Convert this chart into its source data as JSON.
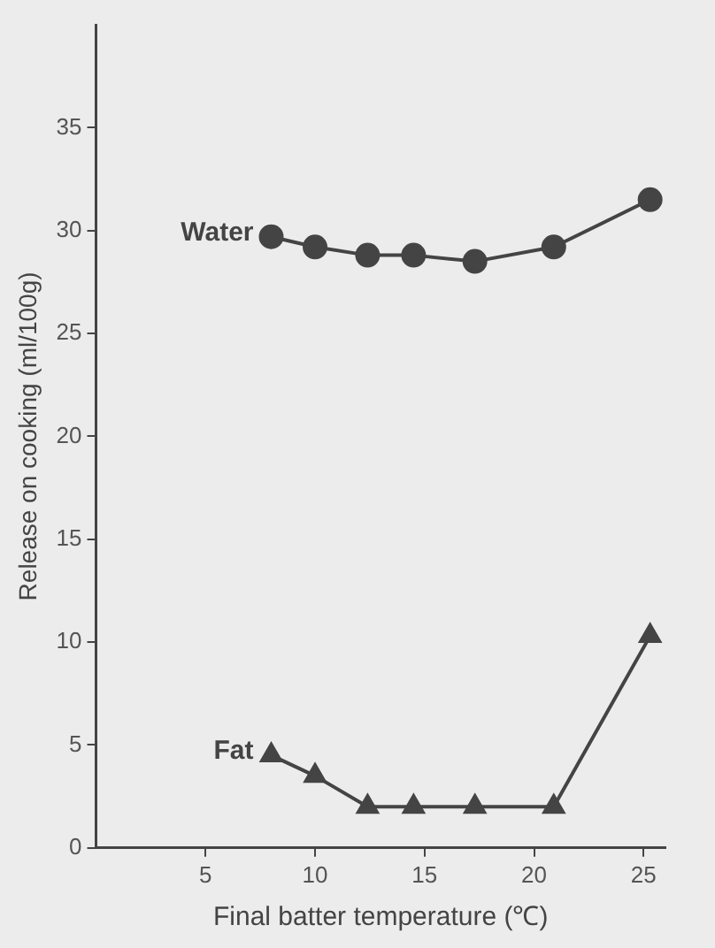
{
  "chart_data": {
    "type": "line",
    "xlabel": "Final batter temperature (℃)",
    "ylabel": "Release on cooking (ml/100g)",
    "x": [
      8,
      10,
      12.4,
      14.5,
      17.3,
      20.9,
      25.3
    ],
    "series": [
      {
        "name": "Water",
        "color": "#444444",
        "marker": "circle",
        "values": [
          29.7,
          29.2,
          28.8,
          28.8,
          28.5,
          29.2,
          31.5
        ]
      },
      {
        "name": "Fat",
        "color": "#444444",
        "marker": "triangle",
        "values": [
          4.5,
          3.5,
          2.0,
          2.0,
          2.0,
          2.0,
          10.3
        ]
      }
    ],
    "xlim": [
      0,
      26
    ],
    "xticks": [
      5,
      10,
      15,
      20,
      25
    ],
    "ylim": [
      0,
      40
    ],
    "yticks": [
      0,
      5,
      10,
      15,
      20,
      25,
      30,
      35
    ],
    "grid": false,
    "legend": false,
    "line_style": "solid"
  }
}
